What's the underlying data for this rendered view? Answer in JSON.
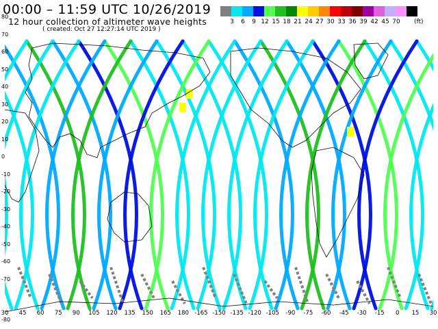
{
  "header": {
    "title": "00:00 – 11:59 UTC 10/26/2019",
    "subtitle": "12 hour collection of altimeter wave heights",
    "created": "( created: Oct 27 12:27:14 UTC 2019 )"
  },
  "legend": {
    "unit": "(ft)",
    "colors": [
      "#808080",
      "#00e8f0",
      "#00aaff",
      "#0010e0",
      "#50ff50",
      "#20c020",
      "#008800",
      "#ffff00",
      "#ffcc00",
      "#ff8800",
      "#ff0000",
      "#c00000",
      "#800000",
      "#a000a0",
      "#e060e0",
      "#c0b0ff",
      "#ff90ff",
      "#000000"
    ],
    "labels": [
      "3",
      "6",
      "9",
      "12",
      "15",
      "18",
      "21",
      "24",
      "27",
      "30",
      "33",
      "36",
      "39",
      "42",
      "45",
      "70"
    ]
  },
  "axes": {
    "lat_labels": [
      "80",
      "70",
      "60",
      "50",
      "40",
      "30",
      "20",
      "10",
      "0",
      "-10",
      "-20",
      "-30",
      "-40",
      "-50",
      "-60",
      "-70"
    ],
    "lon_labels": [
      "30",
      "45",
      "60",
      "75",
      "90",
      "105",
      "120",
      "135",
      "150",
      "165",
      "180",
      "-165",
      "-150",
      "-135",
      "-120",
      "-105",
      "-90",
      "-75",
      "-60",
      "-45",
      "-30",
      "-15",
      "0",
      "15",
      "30"
    ],
    "bottom_left": "-80"
  },
  "map": {
    "colors": {
      "land_outline": "#000000",
      "swath_light": "#00e8f0",
      "swath_mid": "#00aaff",
      "swath_dark": "#0010e0",
      "swath_green": "#50ff50",
      "swath_dark_green": "#20c020",
      "swath_yellow": "#ffff00",
      "swath_gray": "#808080"
    }
  }
}
